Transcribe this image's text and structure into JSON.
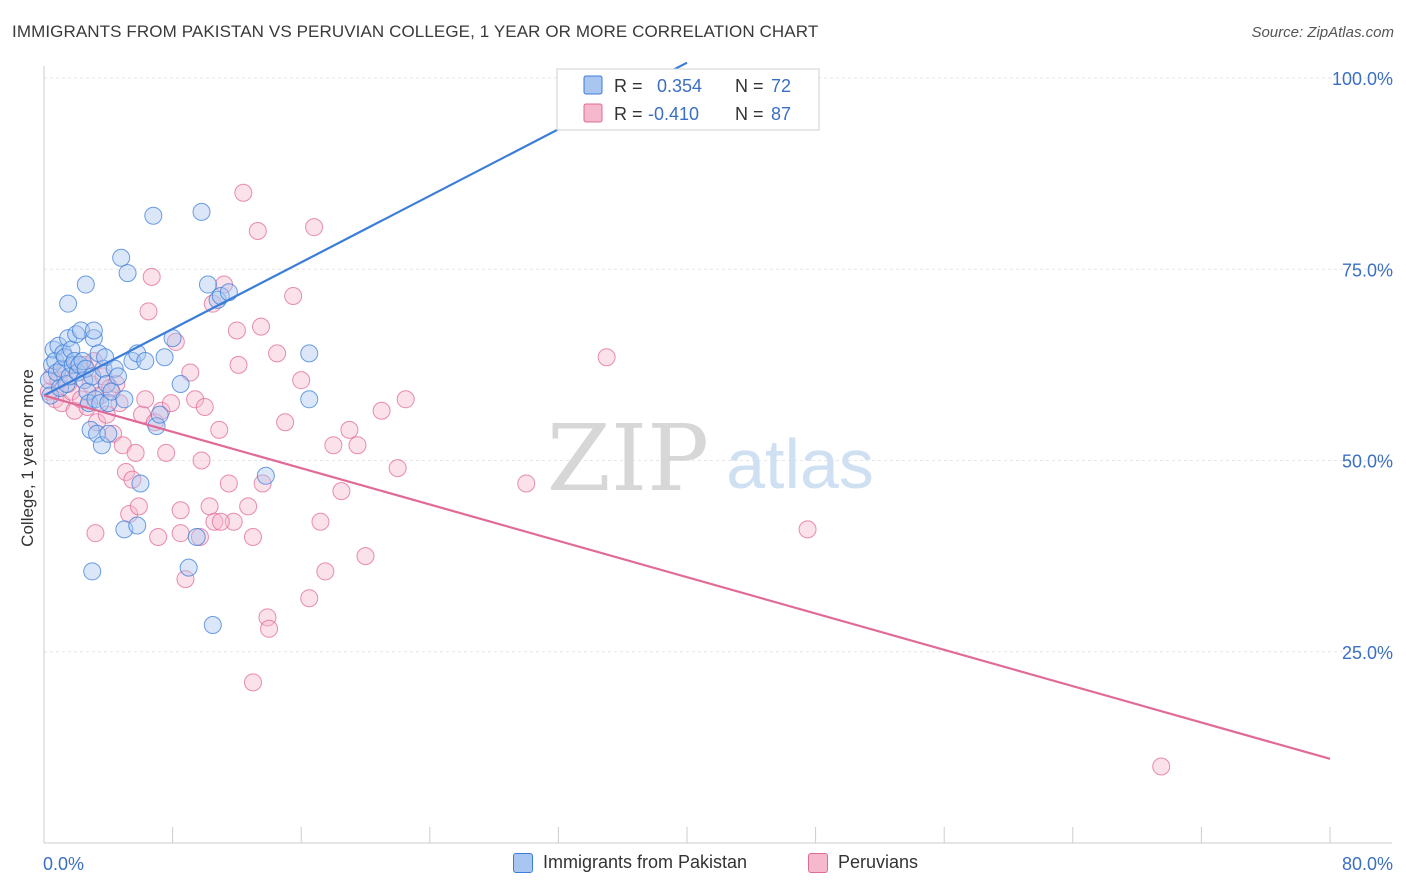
{
  "header": {
    "title": "IMMIGRANTS FROM PAKISTAN VS PERUVIAN COLLEGE, 1 YEAR OR MORE CORRELATION CHART",
    "source": "Source: ZipAtlas.com"
  },
  "watermark": {
    "zip": "ZIP",
    "atlas": "atlas"
  },
  "colors": {
    "blue": "#3b7dd8",
    "blue_fill": "#a9c6f0",
    "pink": "#e06a98",
    "pink_fill": "#f5b8cd",
    "grid": "#e6e6e6",
    "tick_label": "#3b6fc4"
  },
  "chart_data": {
    "type": "scatter",
    "title": "IMMIGRANTS FROM PAKISTAN VS PERUVIAN COLLEGE, 1 YEAR OR MORE CORRELATION CHART",
    "xlabel": "",
    "ylabel": "College, 1 year or more",
    "xlim": [
      0,
      80
    ],
    "ylim": [
      0,
      100
    ],
    "x_tick_labels": [
      "0.0%",
      "80.0%"
    ],
    "y_ticks": [
      25,
      50,
      75,
      100
    ],
    "y_tick_labels": [
      "25.0%",
      "50.0%",
      "75.0%",
      "100.0%"
    ],
    "grid": true,
    "legend_stats": [
      {
        "r_label": "R =",
        "r_value": "0.354",
        "n_label": "N =",
        "n_value": "72"
      },
      {
        "r_label": "R =",
        "r_value": "-0.410",
        "n_label": "N =",
        "n_value": "87"
      }
    ],
    "series": [
      {
        "name": "Immigrants from Pakistan",
        "color": "#3b7dd8",
        "trendline": {
          "x": [
            0,
            40
          ],
          "y": [
            58.5,
            102
          ]
        },
        "points": [
          [
            0.3,
            60.5
          ],
          [
            0.4,
            58.5
          ],
          [
            0.5,
            62.5
          ],
          [
            0.6,
            64.5
          ],
          [
            0.7,
            63
          ],
          [
            0.8,
            61.5
          ],
          [
            0.9,
            65
          ],
          [
            1.0,
            59.5
          ],
          [
            1.1,
            62
          ],
          [
            1.2,
            64
          ],
          [
            1.3,
            63.5
          ],
          [
            1.4,
            60
          ],
          [
            1.5,
            66
          ],
          [
            1.6,
            61
          ],
          [
            1.7,
            64.5
          ],
          [
            1.8,
            62.5
          ],
          [
            1.9,
            63
          ],
          [
            2.0,
            66.5
          ],
          [
            2.1,
            61.5
          ],
          [
            2.2,
            62.5
          ],
          [
            2.3,
            67
          ],
          [
            2.4,
            63
          ],
          [
            2.5,
            60.5
          ],
          [
            2.6,
            62
          ],
          [
            2.7,
            59
          ],
          [
            2.8,
            57.5
          ],
          [
            2.9,
            54
          ],
          [
            3.0,
            61
          ],
          [
            3.1,
            66
          ],
          [
            3.2,
            58
          ],
          [
            3.3,
            53.5
          ],
          [
            3.4,
            64
          ],
          [
            3.5,
            57.5
          ],
          [
            3.6,
            52
          ],
          [
            3.7,
            62
          ],
          [
            3.8,
            63.5
          ],
          [
            3.9,
            60
          ],
          [
            4.0,
            57.5
          ],
          [
            4.2,
            59
          ],
          [
            4.4,
            62
          ],
          [
            4.6,
            61
          ],
          [
            4.8,
            76.5
          ],
          [
            5.0,
            58
          ],
          [
            5.2,
            74.5
          ],
          [
            5.5,
            63
          ],
          [
            5.8,
            64
          ],
          [
            6.0,
            47
          ],
          [
            6.3,
            63
          ],
          [
            6.8,
            82
          ],
          [
            7.0,
            54.5
          ],
          [
            7.2,
            56
          ],
          [
            7.5,
            63.5
          ],
          [
            8.0,
            66
          ],
          [
            8.5,
            60
          ],
          [
            9.0,
            36
          ],
          [
            9.5,
            40
          ],
          [
            9.8,
            82.5
          ],
          [
            10.2,
            73
          ],
          [
            10.5,
            28.5
          ],
          [
            10.8,
            71
          ],
          [
            11.0,
            71.5
          ],
          [
            11.5,
            72
          ],
          [
            2.6,
            73
          ],
          [
            3.1,
            67
          ],
          [
            4.0,
            53.5
          ],
          [
            5.0,
            41
          ],
          [
            5.8,
            41.5
          ],
          [
            3.0,
            35.5
          ],
          [
            1.5,
            70.5
          ],
          [
            13.8,
            48
          ],
          [
            16.5,
            58
          ],
          [
            16.5,
            64
          ]
        ]
      },
      {
        "name": "Peruvians",
        "color": "#e06a98",
        "trendline": {
          "x": [
            0,
            80
          ],
          "y": [
            58.5,
            11
          ]
        },
        "points": [
          [
            0.3,
            59
          ],
          [
            0.5,
            61
          ],
          [
            0.7,
            58
          ],
          [
            0.9,
            60.5
          ],
          [
            1.1,
            57.5
          ],
          [
            1.3,
            62
          ],
          [
            1.5,
            60
          ],
          [
            1.7,
            59
          ],
          [
            1.9,
            56.5
          ],
          [
            2.1,
            61.5
          ],
          [
            2.3,
            58
          ],
          [
            2.5,
            62.5
          ],
          [
            2.7,
            57
          ],
          [
            2.9,
            60
          ],
          [
            3.1,
            63
          ],
          [
            3.3,
            55
          ],
          [
            3.5,
            58.5
          ],
          [
            3.7,
            61
          ],
          [
            3.9,
            56
          ],
          [
            4.1,
            59.5
          ],
          [
            4.3,
            53.5
          ],
          [
            4.5,
            60
          ],
          [
            4.7,
            57.5
          ],
          [
            4.9,
            52
          ],
          [
            5.1,
            48.5
          ],
          [
            5.3,
            43
          ],
          [
            5.5,
            47.5
          ],
          [
            5.7,
            51
          ],
          [
            5.9,
            44
          ],
          [
            6.1,
            56
          ],
          [
            6.3,
            58
          ],
          [
            6.5,
            69.5
          ],
          [
            6.7,
            74
          ],
          [
            6.9,
            55
          ],
          [
            7.1,
            40
          ],
          [
            7.3,
            56.5
          ],
          [
            7.6,
            51
          ],
          [
            7.9,
            57.5
          ],
          [
            8.2,
            65.5
          ],
          [
            8.5,
            43.5
          ],
          [
            8.8,
            34.5
          ],
          [
            9.1,
            61.5
          ],
          [
            9.4,
            58
          ],
          [
            9.7,
            40
          ],
          [
            10.0,
            57
          ],
          [
            10.3,
            44
          ],
          [
            10.6,
            42
          ],
          [
            10.9,
            54
          ],
          [
            11.2,
            73
          ],
          [
            11.5,
            47
          ],
          [
            11.8,
            42
          ],
          [
            12.1,
            62.5
          ],
          [
            12.4,
            85
          ],
          [
            12.7,
            44
          ],
          [
            13.0,
            40
          ],
          [
            13.3,
            80
          ],
          [
            13.6,
            47
          ],
          [
            13.9,
            29.5
          ],
          [
            14.5,
            64
          ],
          [
            15.0,
            55
          ],
          [
            15.5,
            71.5
          ],
          [
            16.0,
            60.5
          ],
          [
            16.5,
            32
          ],
          [
            16.8,
            80.5
          ],
          [
            17.2,
            42
          ],
          [
            17.5,
            35.5
          ],
          [
            18.0,
            52
          ],
          [
            18.5,
            46
          ],
          [
            19.0,
            54
          ],
          [
            19.5,
            52
          ],
          [
            20.0,
            37.5
          ],
          [
            21.0,
            56.5
          ],
          [
            22.0,
            49
          ],
          [
            22.5,
            58
          ],
          [
            9.8,
            50
          ],
          [
            12.0,
            67
          ],
          [
            13.5,
            67.5
          ],
          [
            10.5,
            70.5
          ],
          [
            8.5,
            40.5
          ],
          [
            11.0,
            42
          ],
          [
            13.0,
            21
          ],
          [
            14.0,
            28
          ],
          [
            30.0,
            47
          ],
          [
            35.0,
            63.5
          ],
          [
            47.5,
            41
          ],
          [
            69.5,
            10
          ],
          [
            3.2,
            40.5
          ]
        ]
      }
    ]
  }
}
